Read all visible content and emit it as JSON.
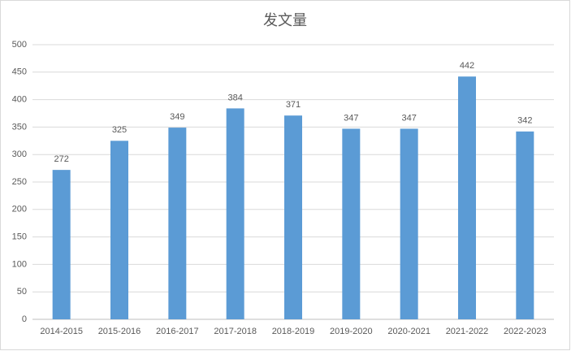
{
  "chart_data": {
    "type": "bar",
    "title": "发文量",
    "categories": [
      "2014-2015",
      "2015-2016",
      "2016-2017",
      "2017-2018",
      "2018-2019",
      "2019-2020",
      "2020-2021",
      "2021-2022",
      "2022-2023"
    ],
    "values": [
      272,
      325,
      349,
      384,
      371,
      347,
      347,
      442,
      342
    ],
    "color": "#5b9bd5",
    "ylim": [
      0,
      500
    ],
    "yticks": [
      0,
      50,
      100,
      150,
      200,
      250,
      300,
      350,
      400,
      450,
      500
    ],
    "grid": true,
    "data_labels": true
  }
}
